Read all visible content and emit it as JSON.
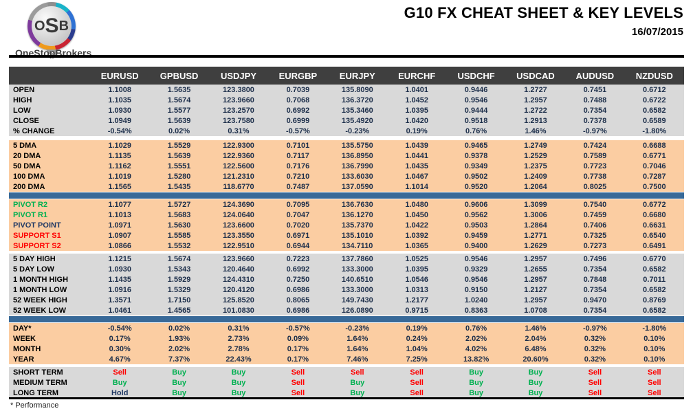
{
  "header": {
    "logo": {
      "l1": "O",
      "l2": "S",
      "l3": "B",
      "name": "OneStopBrokers"
    },
    "title": "G10 FX CHEAT SHEET & KEY LEVELS",
    "date": "16/07/2015"
  },
  "footer": {
    "note": "* Performance"
  },
  "colors": {
    "header_bg": "#3f3f3f",
    "gray_bg": "#d9d9d9",
    "peach_bg": "#fbcda2",
    "bar": "#386998",
    "number_text": "#1c2e4a",
    "resistance": "#00b050",
    "pivot": "#1f3864",
    "support": "#ff0000",
    "buy": "#00b050",
    "sell": "#ff0000",
    "hold": "#1f3864"
  },
  "table": {
    "columns": [
      "EURUSD",
      "GPBUSD",
      "USDJPY",
      "EURGBP",
      "EURJPY",
      "EURCHF",
      "USDCHF",
      "USDCAD",
      "AUDUSD",
      "NZDUSD"
    ],
    "sections": [
      {
        "name": "ohlc",
        "bg": "gray",
        "after": "gap",
        "rows": [
          {
            "label": "OPEN",
            "values": [
              "1.1008",
              "1.5635",
              "123.3800",
              "0.7039",
              "135.8090",
              "1.0401",
              "0.9446",
              "1.2727",
              "0.7451",
              "0.6712"
            ]
          },
          {
            "label": "HIGH",
            "values": [
              "1.1035",
              "1.5674",
              "123.9660",
              "0.7068",
              "136.3720",
              "1.0452",
              "0.9546",
              "1.2957",
              "0.7488",
              "0.6722"
            ]
          },
          {
            "label": "LOW",
            "values": [
              "1.0930",
              "1.5577",
              "123.2570",
              "0.6992",
              "135.3460",
              "1.0395",
              "0.9444",
              "1.2722",
              "0.7354",
              "0.6582"
            ]
          },
          {
            "label": "CLOSE",
            "values": [
              "1.0949",
              "1.5639",
              "123.7580",
              "0.6999",
              "135.4920",
              "1.0420",
              "0.9518",
              "1.2913",
              "0.7378",
              "0.6589"
            ]
          },
          {
            "label": "% CHANGE",
            "values": [
              "-0.54%",
              "0.02%",
              "0.31%",
              "-0.57%",
              "-0.23%",
              "0.19%",
              "0.76%",
              "1.46%",
              "-0.97%",
              "-1.80%"
            ]
          }
        ]
      },
      {
        "name": "moving-averages",
        "bg": "peach",
        "after": "bar",
        "rows": [
          {
            "label": "5 DMA",
            "values": [
              "1.1029",
              "1.5529",
              "122.9300",
              "0.7101",
              "135.5750",
              "1.0439",
              "0.9465",
              "1.2749",
              "0.7424",
              "0.6688"
            ]
          },
          {
            "label": "20 DMA",
            "values": [
              "1.1135",
              "1.5639",
              "122.9360",
              "0.7117",
              "136.8950",
              "1.0441",
              "0.9378",
              "1.2529",
              "0.7589",
              "0.6771"
            ]
          },
          {
            "label": "50 DMA",
            "values": [
              "1.1162",
              "1.5551",
              "122.5600",
              "0.7176",
              "136.7990",
              "1.0435",
              "0.9349",
              "1.2375",
              "0.7723",
              "0.7046"
            ]
          },
          {
            "label": "100 DMA",
            "values": [
              "1.1019",
              "1.5280",
              "121.2310",
              "0.7210",
              "133.6030",
              "1.0467",
              "0.9502",
              "1.2409",
              "0.7738",
              "0.7287"
            ]
          },
          {
            "label": "200 DMA",
            "values": [
              "1.1565",
              "1.5435",
              "118.6770",
              "0.7487",
              "137.0590",
              "1.1014",
              "0.9520",
              "1.2064",
              "0.8025",
              "0.7500"
            ]
          }
        ]
      },
      {
        "name": "pivots",
        "bg": "peach",
        "after": "gap-sm",
        "rows": [
          {
            "label": "PIVOT R2",
            "label_color": "resistance",
            "values": [
              "1.1077",
              "1.5727",
              "124.3690",
              "0.7095",
              "136.7630",
              "1.0480",
              "0.9606",
              "1.3099",
              "0.7540",
              "0.6772"
            ]
          },
          {
            "label": "PIVOT R1",
            "label_color": "resistance",
            "values": [
              "1.1013",
              "1.5683",
              "124.0640",
              "0.7047",
              "136.1270",
              "1.0450",
              "0.9562",
              "1.3006",
              "0.7459",
              "0.6680"
            ]
          },
          {
            "label": "PIVOT POINT",
            "label_color": "pivot",
            "values": [
              "1.0971",
              "1.5630",
              "123.6600",
              "0.7020",
              "135.7370",
              "1.0422",
              "0.9503",
              "1.2864",
              "0.7406",
              "0.6631"
            ]
          },
          {
            "label": "SUPPORT S1",
            "label_color": "support",
            "values": [
              "1.0907",
              "1.5585",
              "123.3550",
              "0.6971",
              "135.1010",
              "1.0392",
              "0.9459",
              "1.2771",
              "0.7325",
              "0.6540"
            ]
          },
          {
            "label": "SUPPORT S2",
            "label_color": "support",
            "values": [
              "1.0866",
              "1.5532",
              "122.9510",
              "0.6944",
              "134.7110",
              "1.0365",
              "0.9400",
              "1.2629",
              "0.7273",
              "0.6491"
            ]
          }
        ]
      },
      {
        "name": "ranges",
        "bg": "gray",
        "after": "bar",
        "rows": [
          {
            "label": "5 DAY HIGH",
            "values": [
              "1.1215",
              "1.5674",
              "123.9660",
              "0.7223",
              "137.7860",
              "1.0525",
              "0.9546",
              "1.2957",
              "0.7496",
              "0.6770"
            ]
          },
          {
            "label": "5 DAY LOW",
            "values": [
              "1.0930",
              "1.5343",
              "120.4640",
              "0.6992",
              "133.3000",
              "1.0395",
              "0.9329",
              "1.2655",
              "0.7354",
              "0.6582"
            ]
          },
          {
            "label": "1 MONTH HIGH",
            "values": [
              "1.1435",
              "1.5929",
              "124.4310",
              "0.7250",
              "140.6510",
              "1.0546",
              "0.9546",
              "1.2957",
              "0.7848",
              "0.7011"
            ]
          },
          {
            "label": "1 MONTH LOW",
            "values": [
              "1.0916",
              "1.5329",
              "120.4120",
              "0.6986",
              "133.3000",
              "1.0313",
              "0.9150",
              "1.2127",
              "0.7354",
              "0.6582"
            ]
          },
          {
            "label": "52 WEEK HIGH",
            "values": [
              "1.3571",
              "1.7150",
              "125.8520",
              "0.8065",
              "149.7430",
              "1.2177",
              "1.0240",
              "1.2957",
              "0.9470",
              "0.8769"
            ]
          },
          {
            "label": "52 WEEK LOW",
            "values": [
              "1.0461",
              "1.4565",
              "101.0830",
              "0.6986",
              "126.0890",
              "0.9715",
              "0.8363",
              "1.0708",
              "0.7354",
              "0.6582"
            ]
          }
        ]
      },
      {
        "name": "performance",
        "bg": "peach",
        "after": "gap-sm",
        "rows": [
          {
            "label": "DAY*",
            "values": [
              "-0.54%",
              "0.02%",
              "0.31%",
              "-0.57%",
              "-0.23%",
              "0.19%",
              "0.76%",
              "1.46%",
              "-0.97%",
              "-1.80%"
            ]
          },
          {
            "label": "WEEK",
            "values": [
              "0.17%",
              "1.93%",
              "2.73%",
              "0.09%",
              "1.64%",
              "0.24%",
              "2.02%",
              "2.04%",
              "0.32%",
              "0.10%"
            ]
          },
          {
            "label": "MONTH",
            "values": [
              "0.30%",
              "2.02%",
              "2.78%",
              "0.17%",
              "1.64%",
              "1.04%",
              "4.02%",
              "6.48%",
              "0.32%",
              "0.10%"
            ]
          },
          {
            "label": "YEAR",
            "values": [
              "4.67%",
              "7.37%",
              "22.43%",
              "0.17%",
              "7.46%",
              "7.25%",
              "13.82%",
              "20.60%",
              "0.32%",
              "0.10%"
            ]
          }
        ]
      },
      {
        "name": "signals",
        "bg": "gray",
        "after": null,
        "rows": [
          {
            "label": "SHORT TERM",
            "signals": true,
            "values": [
              "Sell",
              "Buy",
              "Buy",
              "Sell",
              "Sell",
              "Sell",
              "Buy",
              "Buy",
              "Sell",
              "Sell"
            ]
          },
          {
            "label": "MEDIUM TERM",
            "signals": true,
            "values": [
              "Buy",
              "Buy",
              "Buy",
              "Sell",
              "Buy",
              "Sell",
              "Buy",
              "Buy",
              "Sell",
              "Sell"
            ]
          },
          {
            "label": "LONG TERM",
            "signals": true,
            "values": [
              "Hold",
              "Buy",
              "Buy",
              "Sell",
              "Buy",
              "Sell",
              "Buy",
              "Buy",
              "Sell",
              "Sell"
            ]
          }
        ]
      }
    ]
  }
}
